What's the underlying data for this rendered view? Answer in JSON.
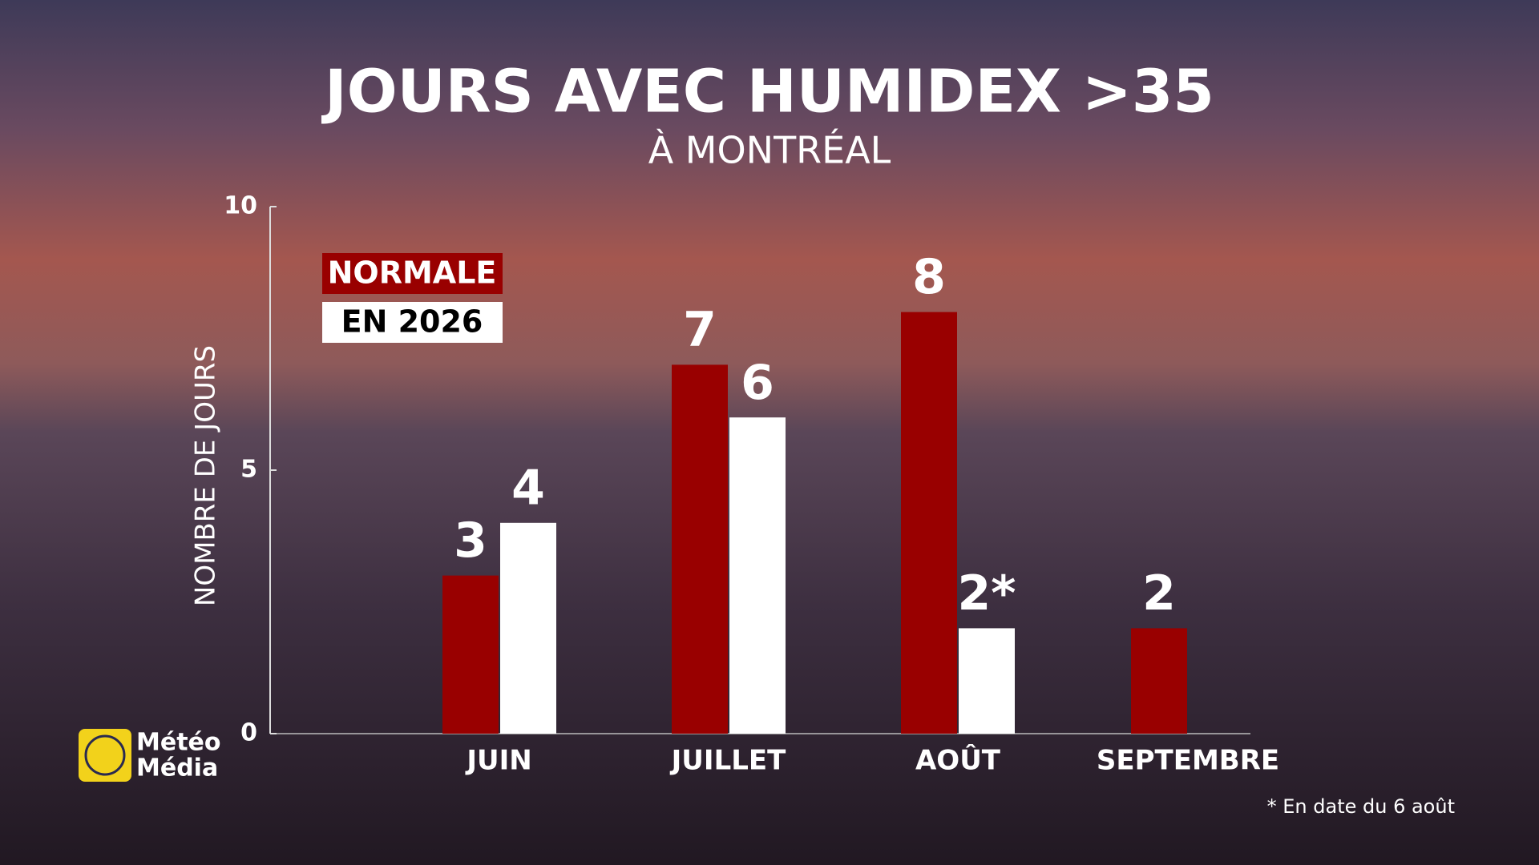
{
  "chart_data": {
    "type": "bar",
    "title": "JOURS AVEC HUMIDEX >35",
    "subtitle": "À MONTRÉAL",
    "y_label": "NOMBRE DE JOURS",
    "categories": [
      "JUIN",
      "JUILLET",
      "AOÛT",
      "SEPTEMBRE"
    ],
    "series": [
      {
        "name": "NORMALE",
        "color": "#990000",
        "values": [
          3,
          7,
          8,
          2
        ]
      },
      {
        "name": "EN 2026",
        "color": "#ffffff",
        "values": [
          4,
          6,
          2,
          null
        ],
        "value_labels": [
          "4",
          "6",
          "2*",
          null
        ]
      }
    ],
    "ylim": [
      0,
      10
    ],
    "yticks": [
      0,
      5,
      10
    ],
    "footnote": "* En date du 6 août"
  },
  "branding": {
    "line1": "Météo",
    "line2": "Média"
  }
}
